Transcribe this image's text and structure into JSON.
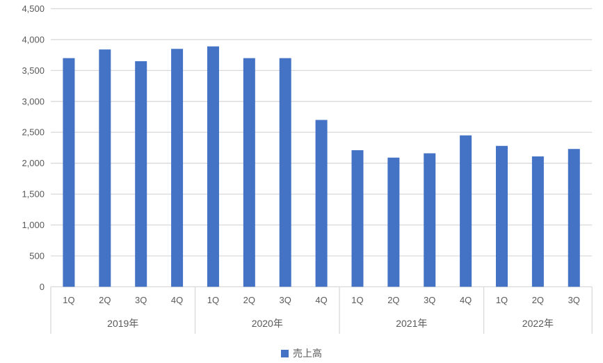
{
  "chart_data": {
    "type": "bar",
    "title": "",
    "xlabel": "",
    "ylabel": "",
    "series_name": "売上高",
    "groups": [
      {
        "year": "2019年",
        "categories": [
          "1Q",
          "2Q",
          "3Q",
          "4Q"
        ],
        "values": [
          3700,
          3840,
          3650,
          3850
        ]
      },
      {
        "year": "2020年",
        "categories": [
          "1Q",
          "2Q",
          "3Q",
          "4Q"
        ],
        "values": [
          3890,
          3700,
          3700,
          2700
        ]
      },
      {
        "year": "2021年",
        "categories": [
          "1Q",
          "2Q",
          "3Q",
          "4Q"
        ],
        "values": [
          2210,
          2090,
          2160,
          2450
        ]
      },
      {
        "year": "2022年",
        "categories": [
          "1Q",
          "2Q",
          "3Q"
        ],
        "values": [
          2280,
          2110,
          2230
        ]
      }
    ],
    "ylim": [
      0,
      4500
    ],
    "ytick_step": 500,
    "ytick_labels": [
      "0",
      "500",
      "1,000",
      "1,500",
      "2,000",
      "2,500",
      "3,000",
      "3,500",
      "4,000",
      "4,500"
    ],
    "grid": true,
    "legend_position": "bottom-center",
    "colors": {
      "bar": "#4472C4",
      "gridline": "#D9D9D9",
      "axis_line": "#D9D9D9",
      "label": "#595959",
      "background": "#FFFFFF"
    }
  }
}
